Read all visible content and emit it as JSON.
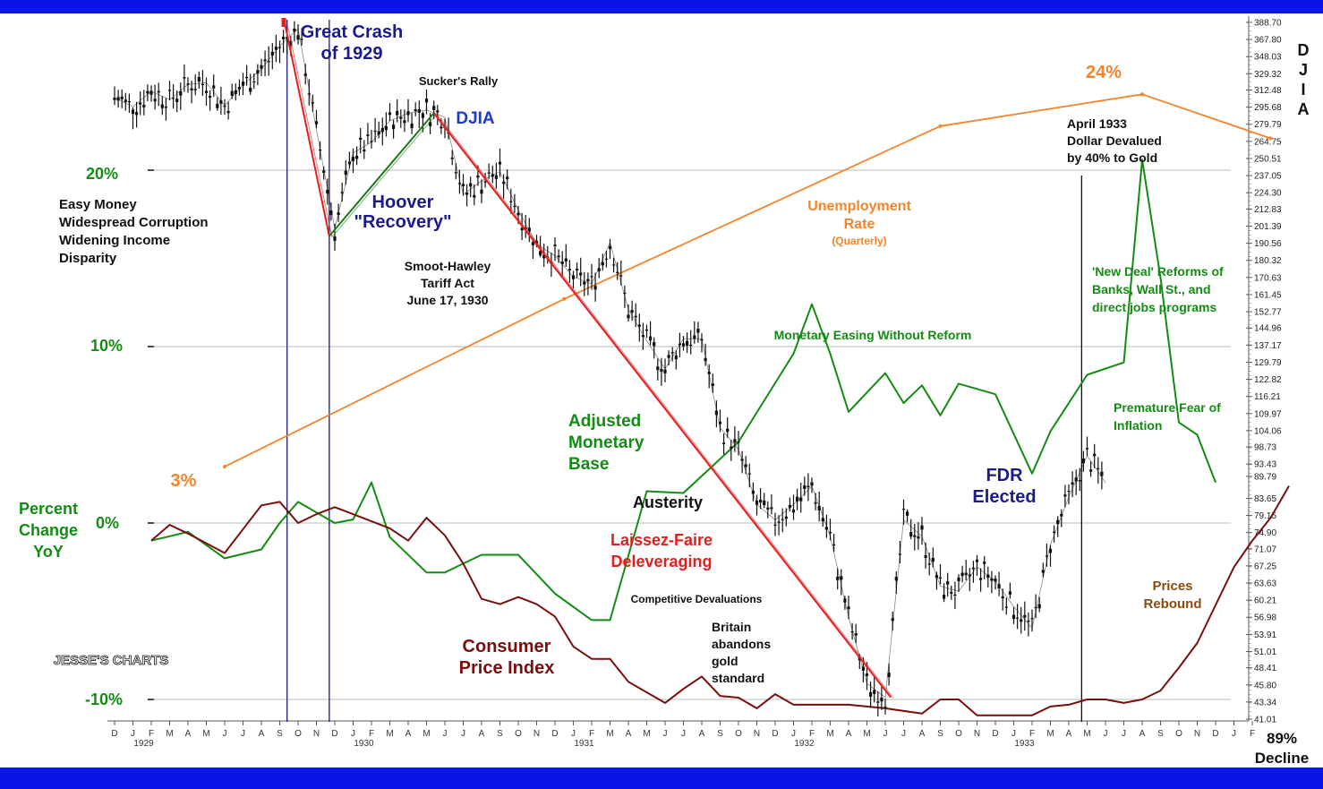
{
  "chart_data": {
    "type": "line",
    "title": "",
    "colors": {
      "djia": "#111111",
      "unemployment": "#f5832a",
      "monetary_base": "#128c12",
      "cpi": "#7a0e0e",
      "crash_line": "#e02020",
      "recovery_line": "#1a7a1a",
      "frame_band": "#0a14e6",
      "marker_lines": "#1a1a8c"
    },
    "x_axis": {
      "months": [
        "D",
        "J",
        "F",
        "M",
        "A",
        "M",
        "J",
        "J",
        "A",
        "S",
        "O",
        "N",
        "D",
        "J",
        "F",
        "M",
        "A",
        "M",
        "J",
        "J",
        "A",
        "S",
        "O",
        "N",
        "D",
        "J",
        "F",
        "M",
        "A",
        "M",
        "J",
        "J",
        "A",
        "S",
        "O",
        "N",
        "D",
        "J",
        "F",
        "M",
        "A",
        "M",
        "J",
        "J",
        "A",
        "S",
        "O",
        "N",
        "D",
        "J",
        "F",
        "M",
        "A",
        "M",
        "J",
        "J",
        "A",
        "S",
        "O",
        "N",
        "D",
        "J",
        "F"
      ],
      "years": [
        {
          "label": "1929",
          "month_index": 1
        },
        {
          "label": "1930",
          "month_index": 13
        },
        {
          "label": "1931",
          "month_index": 25
        },
        {
          "label": "1932",
          "month_index": 37
        },
        {
          "label": "1933",
          "month_index": 49
        }
      ]
    },
    "left_axis": {
      "unit": "percent",
      "labels": [
        {
          "text": "20%",
          "value": 20
        },
        {
          "text": "10%",
          "value": 10
        },
        {
          "text": "0%",
          "value": 0
        },
        {
          "text": "-10%",
          "value": -10
        }
      ],
      "range": [
        -11,
        30
      ],
      "title_lines": [
        "Percent",
        "Change",
        "YoY"
      ]
    },
    "right_axis": {
      "title_letters": [
        "D",
        "J",
        "I",
        "A"
      ],
      "labels": [
        "388.70",
        "367.80",
        "348.03",
        "329.32",
        "312.48",
        "295.68",
        "279.79",
        "264.75",
        "250.51",
        "237.05",
        "224.30",
        "212.83",
        "201.39",
        "190.56",
        "180.32",
        "170.63",
        "161.45",
        "152.77",
        "144.96",
        "137.17",
        "129.79",
        "122.82",
        "116.21",
        "109.97",
        "104.06",
        "98.73",
        "93.43",
        "89.79",
        "83.65",
        "79.15",
        "74.90",
        "71.07",
        "67.25",
        "63.63",
        "60.21",
        "56.98",
        "53.91",
        "51.01",
        "48.41",
        "45.80",
        "43.34",
        "41.01"
      ]
    },
    "series": [
      {
        "name": "Unemployment Rate (Quarterly)",
        "color_key": "unemployment",
        "points": [
          [
            6,
            3.2
          ],
          [
            24.5,
            12.7
          ],
          [
            45,
            22.5
          ],
          [
            56,
            24.3
          ],
          [
            63,
            21.8
          ]
        ]
      },
      {
        "name": "Adjusted Monetary Base",
        "color_key": "monetary_base",
        "points": [
          [
            2,
            -1.0
          ],
          [
            4,
            -0.5
          ],
          [
            6,
            -2.0
          ],
          [
            8,
            -1.5
          ],
          [
            9,
            0.0
          ],
          [
            10,
            1.2
          ],
          [
            12,
            0.0
          ],
          [
            13,
            0.2
          ],
          [
            14,
            2.3
          ],
          [
            15,
            -0.8
          ],
          [
            17,
            -2.8
          ],
          [
            18,
            -2.8
          ],
          [
            20,
            -1.8
          ],
          [
            22,
            -1.8
          ],
          [
            24,
            -4.0
          ],
          [
            26,
            -5.5
          ],
          [
            27,
            -5.5
          ],
          [
            29,
            1.8
          ],
          [
            31,
            1.7
          ],
          [
            34,
            4.6
          ],
          [
            37,
            9.6
          ],
          [
            38,
            12.4
          ],
          [
            39,
            9.6
          ],
          [
            40,
            6.3
          ],
          [
            42,
            8.5
          ],
          [
            43,
            6.8
          ],
          [
            44,
            7.8
          ],
          [
            45,
            6.1
          ],
          [
            46,
            7.9
          ],
          [
            48,
            7.3
          ],
          [
            50,
            2.8
          ],
          [
            51,
            5.2
          ],
          [
            53,
            8.4
          ],
          [
            55,
            9.1
          ],
          [
            56,
            20.6
          ],
          [
            57,
            13.9
          ],
          [
            58,
            5.7
          ],
          [
            59,
            5.0
          ],
          [
            60,
            2.3
          ]
        ]
      },
      {
        "name": "Consumer Price Index",
        "color_key": "cpi",
        "points": [
          [
            2,
            -1.0
          ],
          [
            3,
            -0.1
          ],
          [
            4,
            -0.6
          ],
          [
            6,
            -1.7
          ],
          [
            8,
            1.0
          ],
          [
            9,
            1.2
          ],
          [
            10,
            0.0
          ],
          [
            11,
            0.5
          ],
          [
            12,
            0.9
          ],
          [
            15,
            -0.3
          ],
          [
            16,
            -1.0
          ],
          [
            17,
            0.3
          ],
          [
            18,
            -0.7
          ],
          [
            19,
            -2.3
          ],
          [
            20,
            -4.3
          ],
          [
            21,
            -4.6
          ],
          [
            22,
            -4.2
          ],
          [
            23,
            -4.6
          ],
          [
            24,
            -5.3
          ],
          [
            25,
            -7.0
          ],
          [
            26,
            -7.7
          ],
          [
            27,
            -7.7
          ],
          [
            28,
            -9.0
          ],
          [
            30,
            -10.2
          ],
          [
            31,
            -9.4
          ],
          [
            32,
            -8.7
          ],
          [
            33,
            -9.8
          ],
          [
            34,
            -9.9
          ],
          [
            35,
            -10.5
          ],
          [
            36,
            -9.7
          ],
          [
            37,
            -10.3
          ],
          [
            38,
            -10.3
          ],
          [
            40,
            -10.3
          ],
          [
            42,
            -10.5
          ],
          [
            44,
            -10.8
          ],
          [
            45,
            -10.0
          ],
          [
            46,
            -10.0
          ],
          [
            47,
            -10.9
          ],
          [
            50,
            -10.9
          ],
          [
            51,
            -10.4
          ],
          [
            52,
            -10.3
          ],
          [
            53,
            -10.0
          ],
          [
            54,
            -10.0
          ],
          [
            55,
            -10.2
          ],
          [
            56,
            -10.0
          ],
          [
            57,
            -9.5
          ],
          [
            58,
            -8.2
          ],
          [
            59,
            -6.8
          ],
          [
            61,
            -2.5
          ],
          [
            62,
            -1.0
          ],
          [
            63,
            0.3
          ],
          [
            64,
            2.1
          ]
        ]
      },
      {
        "name": "DJIA",
        "color_key": "djia",
        "points": [
          [
            0,
            305
          ],
          [
            1,
            296
          ],
          [
            2,
            311
          ],
          [
            3,
            303
          ],
          [
            4,
            318
          ],
          [
            5,
            320
          ],
          [
            6,
            297
          ],
          [
            7,
            318
          ],
          [
            8,
            334
          ],
          [
            9,
            360
          ],
          [
            10,
            381
          ],
          [
            11,
            275
          ],
          [
            12,
            200
          ],
          [
            13,
            255
          ],
          [
            14,
            264
          ],
          [
            15,
            283
          ],
          [
            16,
            290
          ],
          [
            17,
            293
          ],
          [
            18,
            286
          ],
          [
            19,
            223
          ],
          [
            20,
            233
          ],
          [
            21,
            240
          ],
          [
            22,
            212
          ],
          [
            23,
            190
          ],
          [
            24,
            183
          ],
          [
            25,
            171
          ],
          [
            26,
            167
          ],
          [
            27,
            191
          ],
          [
            28,
            154
          ],
          [
            29,
            139
          ],
          [
            30,
            127
          ],
          [
            31,
            140
          ],
          [
            32,
            140
          ],
          [
            33,
            105
          ],
          [
            34,
            98
          ],
          [
            35,
            82
          ],
          [
            36,
            78
          ],
          [
            37,
            82
          ],
          [
            38,
            87
          ],
          [
            39,
            74
          ],
          [
            40,
            57
          ],
          [
            41,
            46
          ],
          [
            42,
            44
          ],
          [
            43,
            78
          ],
          [
            44,
            74
          ],
          [
            45,
            63
          ],
          [
            46,
            62
          ],
          [
            47,
            67
          ],
          [
            48,
            64
          ],
          [
            49,
            59
          ],
          [
            50,
            55
          ],
          [
            51,
            72
          ],
          [
            52,
            84
          ],
          [
            53,
            96
          ],
          [
            54,
            88
          ]
        ]
      }
    ],
    "annotations": [
      {
        "lines": [
          "Great Crash",
          "of 1929"
        ]
      },
      {
        "lines": [
          "Sucker's Rally"
        ]
      },
      {
        "lines": [
          "DJIA"
        ]
      },
      {
        "lines": [
          "Easy Money",
          "Widespread Corruption",
          "Widening Income",
          "Disparity"
        ]
      },
      {
        "lines": [
          "Hoover",
          "\"Recovery\""
        ]
      },
      {
        "lines": [
          "Smoot-Hawley",
          "Tariff Act",
          "June 17, 1930"
        ]
      },
      {
        "lines": [
          "Unemployment",
          "Rate"
        ]
      },
      {
        "lines": [
          "(Quarterly)"
        ]
      },
      {
        "lines": [
          "24%"
        ]
      },
      {
        "lines": [
          "3%"
        ]
      },
      {
        "lines": [
          "April 1933",
          "Dollar Devalued",
          "by 40% to Gold"
        ]
      },
      {
        "lines": [
          "'New Deal' Reforms of",
          "Banks, Wall St., and",
          "direct jobs programs"
        ]
      },
      {
        "lines": [
          "Monetary Easing Without Reform"
        ]
      },
      {
        "lines": [
          "Premature Fear of",
          "Inflation"
        ]
      },
      {
        "lines": [
          "Adjusted",
          "Monetary",
          "Base"
        ]
      },
      {
        "lines": [
          "Austerity"
        ]
      },
      {
        "lines": [
          "Laissez-Faire",
          "Deleveraging"
        ]
      },
      {
        "lines": [
          "Competitive Devaluations"
        ]
      },
      {
        "lines": [
          "Britain",
          "abandons",
          "gold",
          "standard"
        ]
      },
      {
        "lines": [
          "Consumer",
          "Price Index"
        ]
      },
      {
        "lines": [
          "FDR",
          "Elected"
        ]
      },
      {
        "lines": [
          "Prices",
          "Rebound"
        ]
      },
      {
        "lines": [
          "JESSE'S CHARTS"
        ]
      },
      {
        "lines": [
          "89%",
          "Decline"
        ]
      }
    ]
  }
}
